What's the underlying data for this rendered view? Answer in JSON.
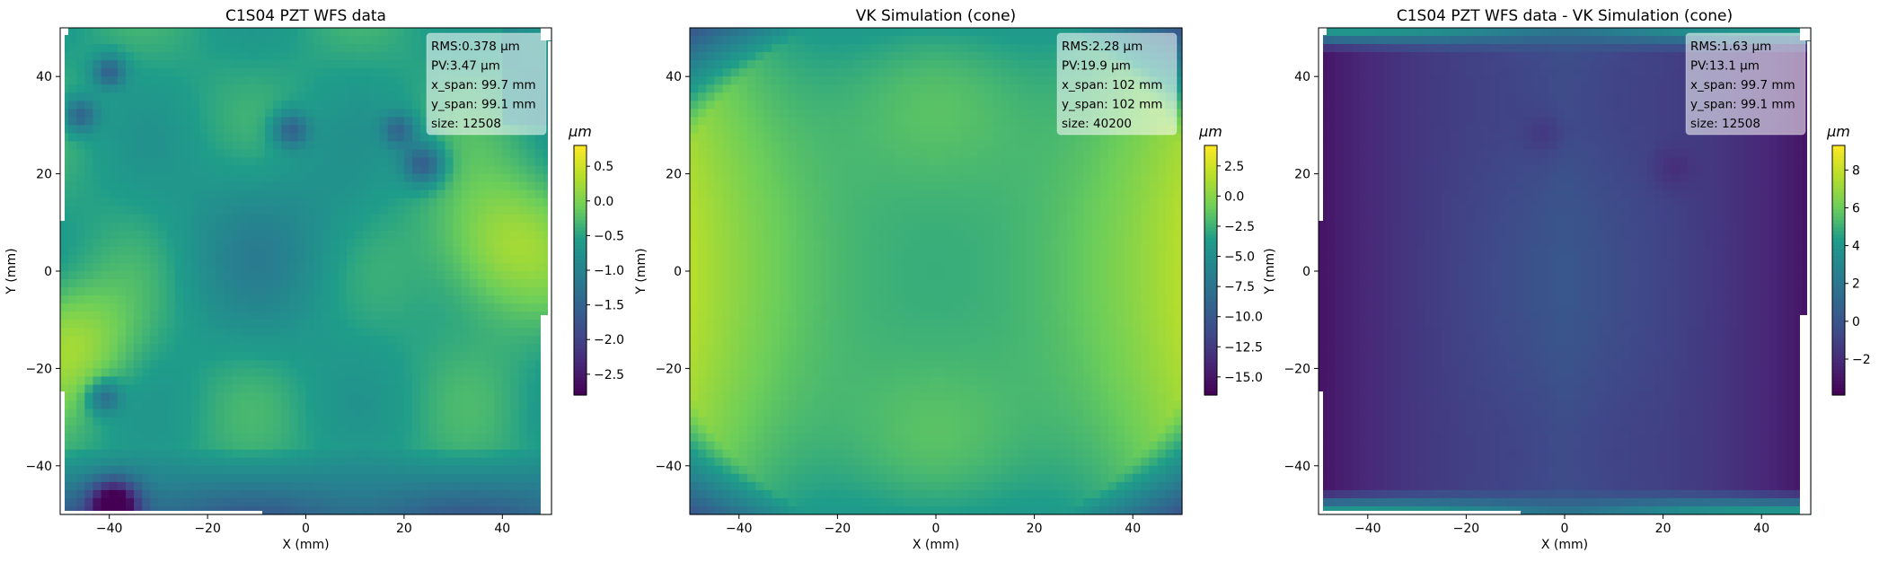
{
  "figure": {
    "background": "#ffffff"
  },
  "colormap": [
    "#440154",
    "#482777",
    "#3f4a8a",
    "#31678e",
    "#26838f",
    "#1f9d8a",
    "#6cce5a",
    "#b6de2b",
    "#fee825"
  ],
  "chart_data": [
    {
      "type": "heatmap",
      "title": "C1S04 PZT WFS data",
      "xlabel": "X (mm)",
      "ylabel": "Y (mm)",
      "xlim": [
        -50,
        50
      ],
      "ylim": [
        -50,
        50
      ],
      "xticks": [
        -40,
        -20,
        0,
        20,
        40
      ],
      "yticks": [
        -40,
        -20,
        0,
        20,
        40
      ],
      "xtick_labels": [
        "−40",
        "−20",
        "0",
        "20",
        "40"
      ],
      "ytick_labels": [
        "−40",
        "−20",
        "0",
        "20",
        "40"
      ],
      "colorbar": {
        "label": "μm",
        "range": [
          -2.8,
          0.8
        ],
        "ticks": [
          0.5,
          0.0,
          -0.5,
          -1.0,
          -1.5,
          -2.0,
          -2.5
        ],
        "tick_labels": [
          "0.5",
          "0.0",
          "−0.5",
          "−1.0",
          "−1.5",
          "−2.0",
          "−2.5"
        ]
      },
      "stats": [
        "RMS:0.378 μm",
        "PV:3.47 μm",
        "x_span: 99.7 mm",
        "y_span: 99.1 mm",
        "size: 12508"
      ],
      "field": "wfs"
    },
    {
      "type": "heatmap",
      "title": "VK Simulation (cone)",
      "xlabel": "X (mm)",
      "ylabel": "Y (mm)",
      "xlim": [
        -50,
        50
      ],
      "ylim": [
        -50,
        50
      ],
      "xticks": [
        -40,
        -20,
        0,
        20,
        40
      ],
      "yticks": [
        -40,
        -20,
        0,
        20,
        40
      ],
      "xtick_labels": [
        "−40",
        "−20",
        "0",
        "20",
        "40"
      ],
      "ytick_labels": [
        "−40",
        "−20",
        "0",
        "20",
        "40"
      ],
      "colorbar": {
        "label": "μm",
        "range": [
          -16.5,
          4.2
        ],
        "ticks": [
          2.5,
          0.0,
          -2.5,
          -5.0,
          -7.5,
          -10.0,
          -12.5,
          -15.0
        ],
        "tick_labels": [
          "2.5",
          "0.0",
          "−2.5",
          "−5.0",
          "−7.5",
          "−10.0",
          "−12.5",
          "−15.0"
        ]
      },
      "stats": [
        "RMS:2.28 μm",
        "PV:19.9 μm",
        "x_span: 102 mm",
        "y_span: 102 mm",
        "size: 40200"
      ],
      "field": "sim"
    },
    {
      "type": "heatmap",
      "title": "C1S04 PZT WFS data - VK Simulation (cone)",
      "xlabel": "X (mm)",
      "ylabel": "Y (mm)",
      "xlim": [
        -50,
        50
      ],
      "ylim": [
        -50,
        50
      ],
      "xticks": [
        -40,
        -20,
        0,
        20,
        40
      ],
      "yticks": [
        -40,
        -20,
        0,
        20,
        40
      ],
      "xtick_labels": [
        "−40",
        "−20",
        "0",
        "20",
        "40"
      ],
      "ytick_labels": [
        "−40",
        "−20",
        "0",
        "20",
        "40"
      ],
      "colorbar": {
        "label": "μm",
        "range": [
          -3.9,
          9.3
        ],
        "ticks": [
          8,
          6,
          4,
          2,
          0,
          -2
        ],
        "tick_labels": [
          "8",
          "6",
          "4",
          "2",
          "0",
          "−2"
        ]
      },
      "stats": [
        "RMS:1.63 μm",
        "PV:13.1 μm",
        "x_span: 99.7 mm",
        "y_span: 99.1 mm",
        "size: 12508"
      ],
      "field": "diff"
    }
  ]
}
